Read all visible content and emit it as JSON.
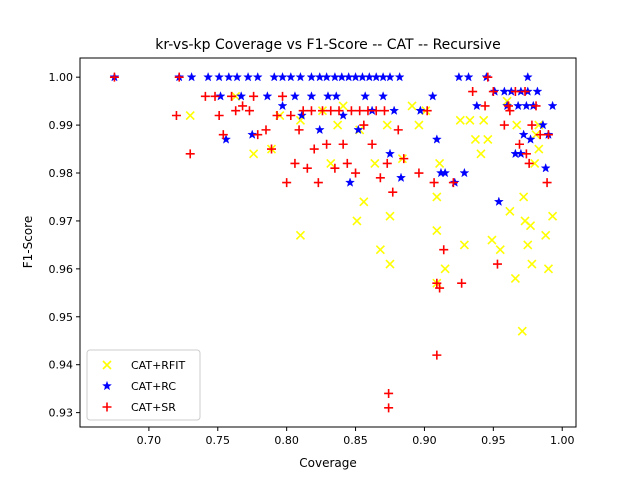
{
  "chart_data": {
    "type": "scatter",
    "title": "kr-vs-kp Coverage vs F1-Score -- CAT -- Recursive",
    "xlabel": "Coverage",
    "ylabel": "F1-Score",
    "xlim": [
      0.65,
      1.01
    ],
    "ylim": [
      0.927,
      1.004
    ],
    "xticks": [
      "0.70",
      "0.75",
      "0.80",
      "0.85",
      "0.90",
      "0.95",
      "1.00"
    ],
    "yticks": [
      "0.93",
      "0.94",
      "0.95",
      "0.96",
      "0.97",
      "0.98",
      "0.99",
      "1.00"
    ],
    "grid": false,
    "legend_position": "lower-left",
    "series": [
      {
        "name": "CAT+RFIT",
        "color": "#ffff00",
        "marker": "x",
        "points": [
          [
            0.73,
            0.992
          ],
          [
            0.763,
            0.996
          ],
          [
            0.776,
            0.984
          ],
          [
            0.789,
            0.985
          ],
          [
            0.795,
            0.992
          ],
          [
            0.81,
            0.967
          ],
          [
            0.81,
            0.991
          ],
          [
            0.826,
            0.993
          ],
          [
            0.832,
            0.982
          ],
          [
            0.837,
            0.99
          ],
          [
            0.841,
            0.994
          ],
          [
            0.851,
            0.97
          ],
          [
            0.853,
            0.989
          ],
          [
            0.856,
            0.974
          ],
          [
            0.864,
            0.982
          ],
          [
            0.868,
            0.964
          ],
          [
            0.873,
            0.99
          ],
          [
            0.875,
            0.961
          ],
          [
            0.875,
            0.971
          ],
          [
            0.884,
            0.983
          ],
          [
            0.891,
            0.994
          ],
          [
            0.896,
            0.99
          ],
          [
            0.901,
            0.993
          ],
          [
            0.909,
            0.968
          ],
          [
            0.909,
            0.975
          ],
          [
            0.909,
            0.957
          ],
          [
            0.911,
            0.982
          ],
          [
            0.915,
            0.96
          ],
          [
            0.926,
            0.991
          ],
          [
            0.929,
            0.965
          ],
          [
            0.933,
            0.991
          ],
          [
            0.937,
            0.987
          ],
          [
            0.941,
            0.984
          ],
          [
            0.943,
            0.991
          ],
          [
            0.946,
            0.987
          ],
          [
            0.949,
            0.966
          ],
          [
            0.955,
            0.964
          ],
          [
            0.96,
            0.995
          ],
          [
            0.962,
            0.972
          ],
          [
            0.966,
            0.958
          ],
          [
            0.967,
            0.99
          ],
          [
            0.971,
            0.947
          ],
          [
            0.972,
            0.975
          ],
          [
            0.975,
            0.965
          ],
          [
            0.977,
            0.969
          ],
          [
            0.978,
            0.961
          ],
          [
            0.981,
            0.988
          ],
          [
            0.983,
            0.985
          ],
          [
            0.988,
            0.967
          ],
          [
            0.99,
            0.96
          ],
          [
            0.993,
            0.971
          ],
          [
            0.98,
            0.982
          ],
          [
            0.983,
            0.99
          ],
          [
            0.973,
            0.97
          ]
        ]
      },
      {
        "name": "CAT+RC",
        "color": "#0000ff",
        "marker": "*",
        "points": [
          [
            0.675,
            1.0
          ],
          [
            0.722,
            1.0
          ],
          [
            0.731,
            1.0
          ],
          [
            0.743,
            1.0
          ],
          [
            0.751,
            1.0
          ],
          [
            0.758,
            1.0
          ],
          [
            0.764,
            1.0
          ],
          [
            0.772,
            1.0
          ],
          [
            0.779,
            1.0
          ],
          [
            0.791,
            1.0
          ],
          [
            0.797,
            1.0
          ],
          [
            0.803,
            1.0
          ],
          [
            0.81,
            1.0
          ],
          [
            0.818,
            1.0
          ],
          [
            0.824,
            1.0
          ],
          [
            0.829,
            1.0
          ],
          [
            0.835,
            1.0
          ],
          [
            0.84,
            1.0
          ],
          [
            0.845,
            1.0
          ],
          [
            0.85,
            1.0
          ],
          [
            0.855,
            1.0
          ],
          [
            0.86,
            1.0
          ],
          [
            0.865,
            1.0
          ],
          [
            0.87,
            1.0
          ],
          [
            0.875,
            1.0
          ],
          [
            0.882,
            1.0
          ],
          [
            0.752,
            0.996
          ],
          [
            0.756,
            0.987
          ],
          [
            0.767,
            0.996
          ],
          [
            0.775,
            0.988
          ],
          [
            0.786,
            0.996
          ],
          [
            0.797,
            0.994
          ],
          [
            0.806,
            0.996
          ],
          [
            0.811,
            0.992
          ],
          [
            0.818,
            0.996
          ],
          [
            0.824,
            0.989
          ],
          [
            0.83,
            0.996
          ],
          [
            0.836,
            0.996
          ],
          [
            0.841,
            0.992
          ],
          [
            0.846,
            0.978
          ],
          [
            0.852,
            0.989
          ],
          [
            0.857,
            0.996
          ],
          [
            0.862,
            0.993
          ],
          [
            0.87,
            0.996
          ],
          [
            0.875,
            0.984
          ],
          [
            0.878,
            0.993
          ],
          [
            0.883,
            0.979
          ],
          [
            0.897,
            0.993
          ],
          [
            0.906,
            0.996
          ],
          [
            0.909,
            0.987
          ],
          [
            0.912,
            0.98
          ],
          [
            0.915,
            0.98
          ],
          [
            0.922,
            0.978
          ],
          [
            0.925,
            1.0
          ],
          [
            0.932,
            1.0
          ],
          [
            0.929,
            0.98
          ],
          [
            0.938,
            0.994
          ],
          [
            0.945,
            1.0
          ],
          [
            0.951,
            0.997
          ],
          [
            0.954,
            0.974
          ],
          [
            0.96,
            0.994
          ],
          [
            0.963,
            0.997
          ],
          [
            0.966,
            0.984
          ],
          [
            0.968,
            0.994
          ],
          [
            0.97,
            0.997
          ],
          [
            0.972,
            0.988
          ],
          [
            0.974,
            0.994
          ],
          [
            0.975,
            1.0
          ],
          [
            0.977,
            0.987
          ],
          [
            0.979,
            0.994
          ],
          [
            0.982,
            0.997
          ],
          [
            0.986,
            0.99
          ],
          [
            0.988,
            0.981
          ],
          [
            0.99,
            0.988
          ],
          [
            0.993,
            0.994
          ],
          [
            0.975,
            0.997
          ],
          [
            0.97,
            0.984
          ],
          [
            0.958,
            0.997
          ]
        ]
      },
      {
        "name": "CAT+SR",
        "color": "#ff0000",
        "marker": "+",
        "points": [
          [
            0.675,
            1.0
          ],
          [
            0.722,
            1.0
          ],
          [
            0.72,
            0.992
          ],
          [
            0.73,
            0.984
          ],
          [
            0.741,
            0.996
          ],
          [
            0.748,
            0.996
          ],
          [
            0.751,
            0.992
          ],
          [
            0.754,
            0.988
          ],
          [
            0.76,
            0.996
          ],
          [
            0.763,
            0.993
          ],
          [
            0.768,
            0.994
          ],
          [
            0.773,
            0.993
          ],
          [
            0.776,
            0.996
          ],
          [
            0.779,
            0.988
          ],
          [
            0.785,
            0.989
          ],
          [
            0.789,
            0.985
          ],
          [
            0.793,
            0.992
          ],
          [
            0.797,
            0.996
          ],
          [
            0.8,
            0.978
          ],
          [
            0.803,
            0.992
          ],
          [
            0.806,
            0.982
          ],
          [
            0.809,
            0.989
          ],
          [
            0.812,
            0.993
          ],
          [
            0.815,
            0.981
          ],
          [
            0.818,
            0.993
          ],
          [
            0.82,
            0.985
          ],
          [
            0.823,
            0.978
          ],
          [
            0.826,
            0.993
          ],
          [
            0.829,
            0.986
          ],
          [
            0.832,
            0.993
          ],
          [
            0.835,
            0.981
          ],
          [
            0.838,
            0.993
          ],
          [
            0.841,
            0.986
          ],
          [
            0.844,
            0.982
          ],
          [
            0.847,
            0.993
          ],
          [
            0.85,
            0.98
          ],
          [
            0.853,
            0.993
          ],
          [
            0.856,
            0.99
          ],
          [
            0.859,
            0.993
          ],
          [
            0.862,
            0.986
          ],
          [
            0.865,
            0.993
          ],
          [
            0.868,
            0.979
          ],
          [
            0.871,
            0.993
          ],
          [
            0.873,
            0.982
          ],
          [
            0.874,
            0.934
          ],
          [
            0.874,
            0.931
          ],
          [
            0.877,
            0.976
          ],
          [
            0.881,
            0.989
          ],
          [
            0.885,
            0.983
          ],
          [
            0.896,
            0.98
          ],
          [
            0.902,
            0.993
          ],
          [
            0.907,
            0.978
          ],
          [
            0.909,
            0.957
          ],
          [
            0.909,
            0.942
          ],
          [
            0.911,
            0.956
          ],
          [
            0.914,
            0.964
          ],
          [
            0.921,
            0.978
          ],
          [
            0.927,
            0.957
          ],
          [
            0.935,
            0.997
          ],
          [
            0.944,
            0.994
          ],
          [
            0.946,
            1.0
          ],
          [
            0.953,
            0.961
          ],
          [
            0.958,
            0.99
          ],
          [
            0.961,
            0.994
          ],
          [
            0.966,
            0.997
          ],
          [
            0.969,
            0.986
          ],
          [
            0.973,
            0.997
          ],
          [
            0.974,
            0.984
          ],
          [
            0.976,
            0.982
          ],
          [
            0.978,
            0.99
          ],
          [
            0.981,
            0.994
          ],
          [
            0.984,
            0.988
          ],
          [
            0.989,
            0.978
          ],
          [
            0.99,
            0.988
          ],
          [
            0.95,
            0.997
          ],
          [
            0.962,
            0.993
          ]
        ]
      }
    ]
  }
}
